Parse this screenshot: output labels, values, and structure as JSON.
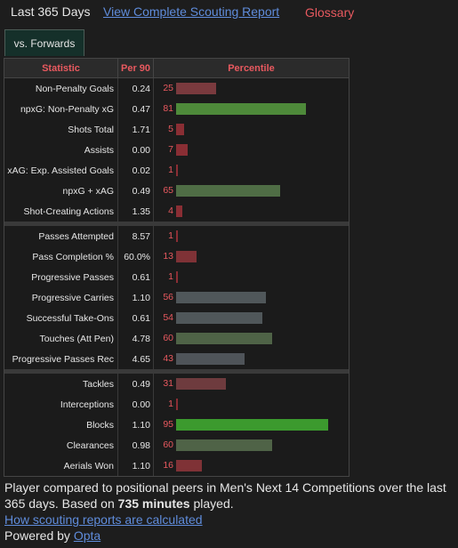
{
  "header": {
    "period": "Last 365 Days",
    "scouting_link": "View Complete Scouting Report",
    "glossary": "Glossary"
  },
  "tab": {
    "label": "vs. Forwards"
  },
  "table": {
    "headers": {
      "statistic": "Statistic",
      "per90": "Per 90",
      "percentile": "Percentile"
    },
    "groups": [
      [
        {
          "stat": "Non-Penalty Goals",
          "per90": "0.24",
          "pct": 25,
          "color": "#7a3a3e"
        },
        {
          "stat": "npxG: Non-Penalty xG",
          "per90": "0.47",
          "pct": 81,
          "color": "#4e8a3a"
        },
        {
          "stat": "Shots Total",
          "per90": "1.71",
          "pct": 5,
          "color": "#8a2e34"
        },
        {
          "stat": "Assists",
          "per90": "0.00",
          "pct": 7,
          "color": "#8a2e34"
        },
        {
          "stat": "xAG: Exp. Assisted Goals",
          "per90": "0.02",
          "pct": 1,
          "color": "#8a2e34"
        },
        {
          "stat": "npxG + xAG",
          "per90": "0.49",
          "pct": 65,
          "color": "#4f6d45"
        },
        {
          "stat": "Shot-Creating Actions",
          "per90": "1.35",
          "pct": 4,
          "color": "#8a2e34"
        }
      ],
      [
        {
          "stat": "Passes Attempted",
          "per90": "8.57",
          "pct": 1,
          "color": "#8a2e34"
        },
        {
          "stat": "Pass Completion %",
          "per90": "60.0%",
          "pct": 13,
          "color": "#7f3236"
        },
        {
          "stat": "Progressive Passes",
          "per90": "0.61",
          "pct": 1,
          "color": "#8a2e34"
        },
        {
          "stat": "Progressive Carries",
          "per90": "1.10",
          "pct": 56,
          "color": "#50575a"
        },
        {
          "stat": "Successful Take-Ons",
          "per90": "0.61",
          "pct": 54,
          "color": "#50575a"
        },
        {
          "stat": "Touches (Att Pen)",
          "per90": "4.78",
          "pct": 60,
          "color": "#4f6347"
        },
        {
          "stat": "Progressive Passes Rec",
          "per90": "4.65",
          "pct": 43,
          "color": "#4f5459"
        }
      ],
      [
        {
          "stat": "Tackles",
          "per90": "0.49",
          "pct": 31,
          "color": "#6e3b3e"
        },
        {
          "stat": "Interceptions",
          "per90": "0.00",
          "pct": 1,
          "color": "#8a2e34"
        },
        {
          "stat": "Blocks",
          "per90": "1.10",
          "pct": 95,
          "color": "#3c9a2e"
        },
        {
          "stat": "Clearances",
          "per90": "0.98",
          "pct": 60,
          "color": "#4f6347"
        },
        {
          "stat": "Aerials Won",
          "per90": "1.10",
          "pct": 16,
          "color": "#7f3236"
        }
      ]
    ]
  },
  "footer": {
    "line1_pre": "Player compared to positional peers in Men's Next 14 Competitions over the last 365 days. Based on ",
    "minutes": "735 minutes",
    "line1_post": " played.",
    "how_link": "How scouting reports are calculated",
    "powered_pre": "Powered by ",
    "powered_link": "Opta"
  }
}
